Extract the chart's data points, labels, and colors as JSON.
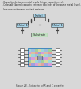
{
  "title": "Figure 28 - Extraction of R and C parasites",
  "bullet1": "Capacities between metal levels (fringe capacitances).",
  "bullet2": "Crosstalk (lateral capacity between two lines of the same metal level).",
  "bullet3": "Interconnection and contact resistors.",
  "bg_color": "#d8d8d8",
  "box_fill_blue": "#a8d4e8",
  "box_fill_green": "#c0e0c0",
  "box_stroke": "#555555",
  "line_color": "#444444",
  "text_color": "#222222",
  "fig_width": 1.0,
  "fig_height": 1.12,
  "dpi": 100,
  "grid_colors": [
    "#e87070",
    "#70c870",
    "#7070e8",
    "#d8d870",
    "#d870d8",
    "#70d8d8",
    "#e8a870",
    "#70a8e8"
  ],
  "caption": "Figure 28 - Extraction of R and C parasites"
}
